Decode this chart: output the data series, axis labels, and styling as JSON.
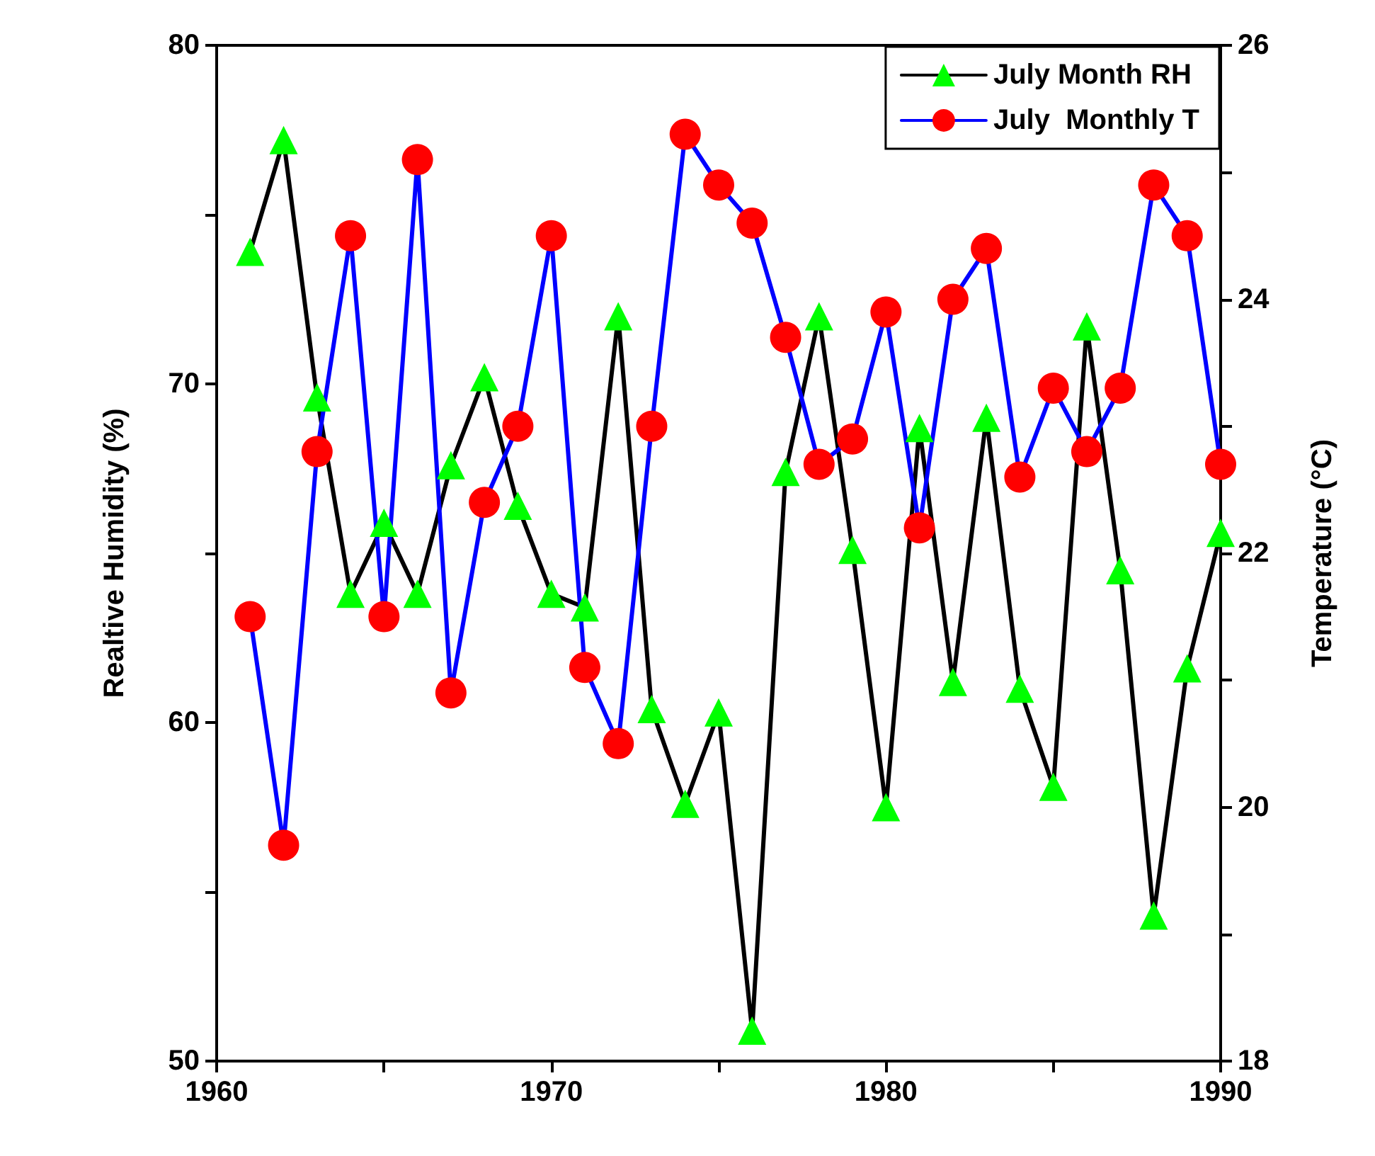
{
  "chart_data": {
    "type": "line",
    "xlabel": null,
    "ylabel": "Realtive Humidity (%)",
    "y2label": "Temperature (°C)",
    "x": [
      1961,
      1962,
      1963,
      1964,
      1965,
      1966,
      1967,
      1968,
      1969,
      1970,
      1971,
      1972,
      1973,
      1974,
      1975,
      1976,
      1977,
      1978,
      1979,
      1980,
      1981,
      1982,
      1983,
      1984,
      1985,
      1986,
      1987,
      1988,
      1989,
      1990
    ],
    "series": [
      {
        "name": "July Month RH",
        "color": "#000000",
        "marker": "triangle",
        "colors": [
          "#00ff00",
          "#00ff00",
          "#00ff00",
          "#00ff00",
          "#00ff00",
          "#00ff00",
          "#00ff00",
          "#00ff00",
          "#00ff00",
          "#00ff00",
          "#00ff00",
          "#00ff00",
          "#00ff00",
          "#00ff00",
          "#00ff00",
          "#00ff00",
          "#00ff00",
          "#00ff00",
          "#00ff00",
          "#00ff00",
          "#00ff00",
          "#00ff00",
          "#00ff00",
          "#00ff00",
          "#00ff00",
          "#00ff00",
          "#00ff00",
          "#00ff00",
          "#00ff00",
          "#00ff00"
        ],
        "values": [
          73.9,
          77.2,
          69.6,
          63.8,
          65.9,
          63.8,
          67.6,
          70.2,
          66.4,
          63.8,
          63.4,
          72.0,
          60.4,
          57.6,
          60.3,
          50.9,
          67.4,
          72.0,
          65.1,
          57.5,
          68.7,
          61.2,
          69.0,
          61.0,
          58.1,
          71.7,
          64.5,
          54.3,
          61.6,
          65.6
        ]
      },
      {
        "name": "July  Monthly T",
        "color": "#0000ff",
        "marker": "circle",
        "axis": "y2",
        "colors": [
          "#ff0000",
          "#ff0000",
          "#ff0000",
          "#ff0000",
          "#ff0000",
          "#ff0000",
          "#ff0000",
          "#ff0000",
          "#ff0000",
          "#ff0000",
          "#ff0000",
          "#ff0000",
          "#ff0000",
          "#ff0000",
          "#ff0000",
          "#ff0000",
          "#ff0000",
          "#ff0000",
          "#ff0000",
          "#ff0000",
          "#ff0000",
          "#ff0000",
          "#ff0000",
          "#ff0000",
          "#ff0000",
          "#ff0000",
          "#ff0000",
          "#ff0000",
          "#ff0000",
          "#ff0000"
        ],
        "values": [
          21.5,
          19.7,
          22.8,
          24.5,
          21.5,
          25.1,
          20.9,
          22.4,
          23.0,
          24.5,
          21.1,
          20.5,
          23.0,
          25.3,
          24.9,
          24.6,
          23.7,
          22.7,
          22.9,
          23.9,
          22.2,
          24.0,
          24.4,
          22.6,
          23.3,
          22.8,
          23.3,
          24.9,
          24.5,
          22.7
        ]
      }
    ],
    "xlim": [
      1960,
      1990
    ],
    "xticks": [
      1960,
      {
        "value": 1965,
        "label": null
      },
      1970,
      {
        "value": 1975,
        "label": null
      },
      1980,
      {
        "value": 1985,
        "label": null
      },
      1990
    ],
    "ylim": [
      50,
      80
    ],
    "yticks": [
      50,
      {
        "value": 55,
        "label": null
      },
      60,
      {
        "value": 65,
        "label": null
      },
      70,
      {
        "value": 75,
        "label": null
      },
      80
    ],
    "y2lim": [
      18,
      26
    ],
    "y2ticks": [
      18,
      {
        "value": 19,
        "label": null
      },
      20,
      {
        "value": 21,
        "label": null
      },
      22,
      {
        "value": 23,
        "label": null
      },
      24,
      {
        "value": 25,
        "label": null
      },
      26
    ],
    "grid": false,
    "legend": "top right",
    "line_style": "solid"
  }
}
